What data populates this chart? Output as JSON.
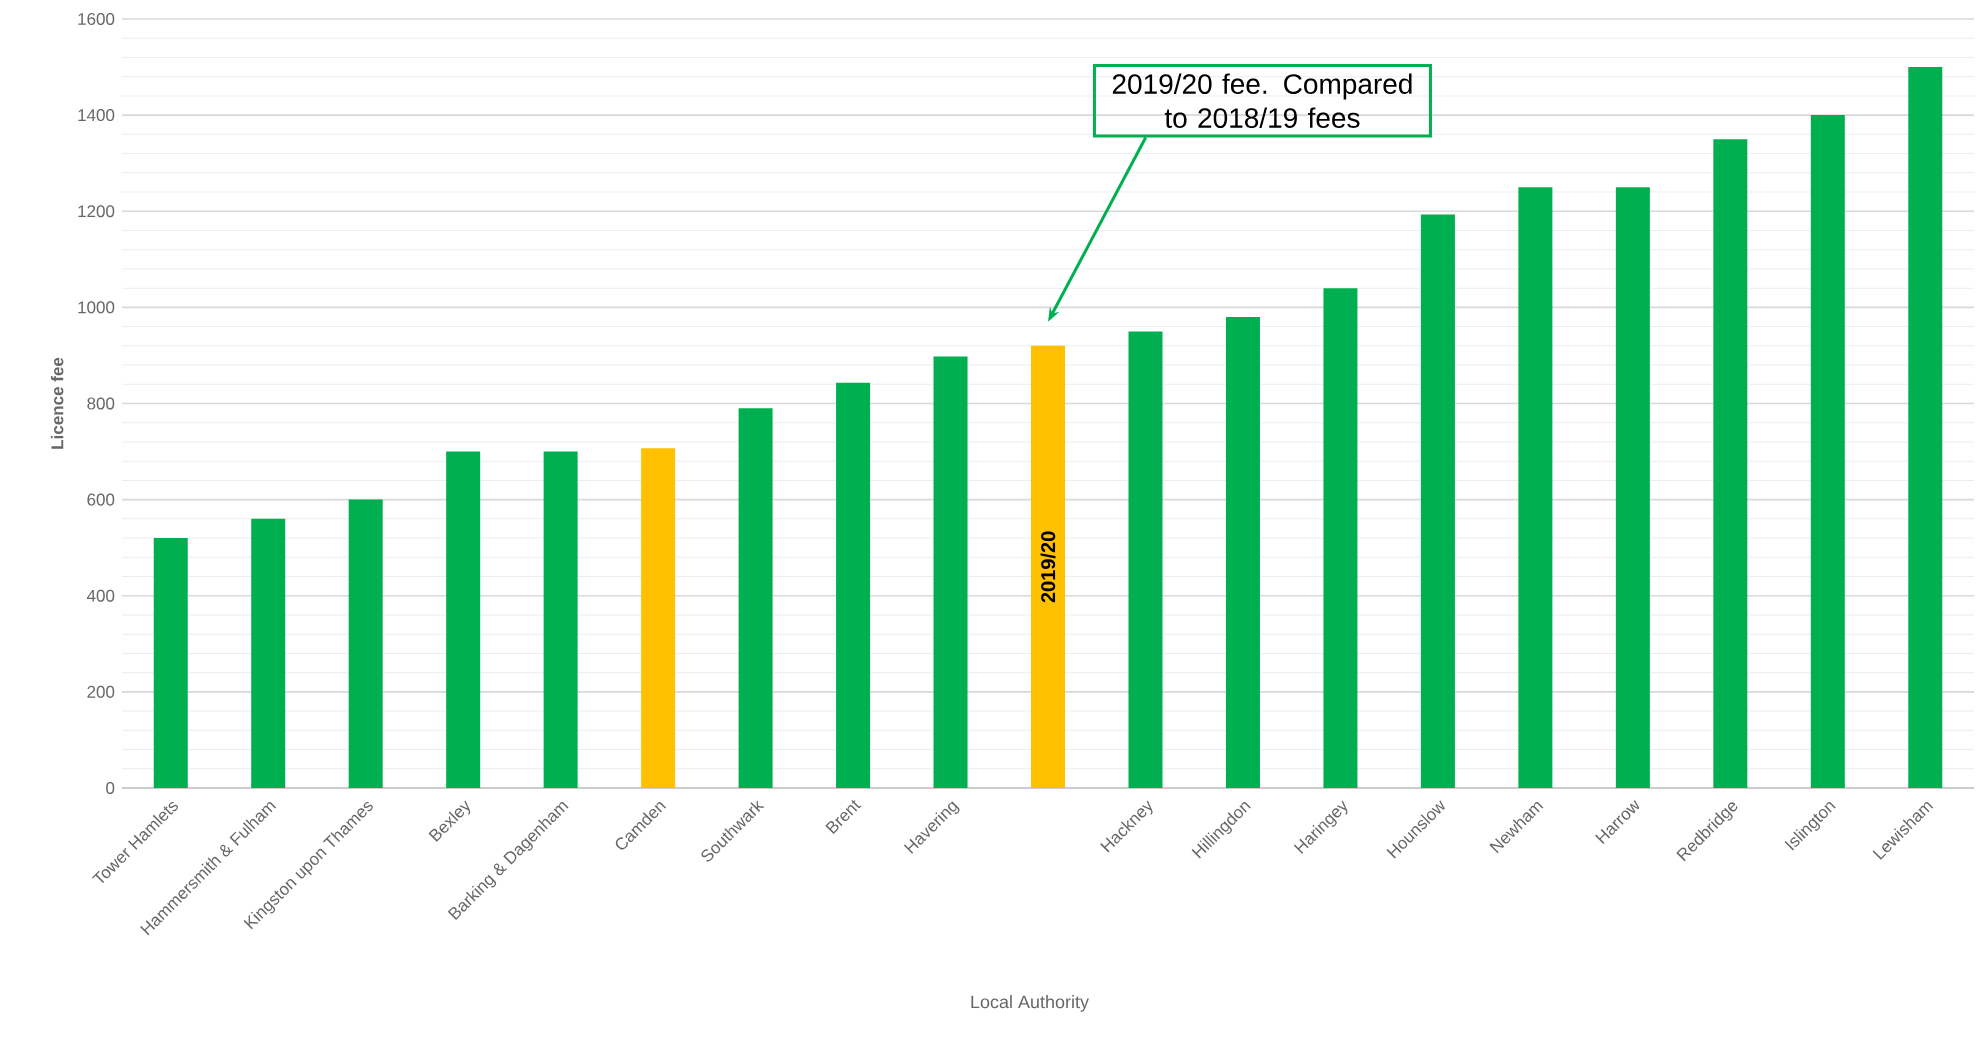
{
  "chart_data": {
    "type": "bar",
    "xlabel": "Local Authority",
    "ylabel": "Licence fee",
    "categories": [
      "Tower Hamlets",
      "Hammersmith & Fulham",
      "Kingston upon Thames",
      "Bexley",
      "Barking & Dagenham",
      "Camden",
      "Southwark",
      "Brent",
      "Havering",
      null,
      "Hackney",
      "Hillingdon",
      "Haringey",
      "Hounslow",
      "Newham",
      "Harrow",
      "Redbridge",
      "Islington",
      "Lewisham"
    ],
    "values": [
      520,
      560,
      600,
      700,
      700,
      707,
      790,
      843,
      898,
      920,
      950,
      980,
      1040,
      1193,
      1250,
      1250,
      1350,
      1400,
      1500
    ],
    "colors": [
      "#00b050",
      "#00b050",
      "#00b050",
      "#00b050",
      "#00b050",
      "#ffc000",
      "#00b050",
      "#00b050",
      "#00b050",
      "#ffc000",
      "#00b050",
      "#00b050",
      "#00b050",
      "#00b050",
      "#00b050",
      "#00b050",
      "#00b050",
      "#00b050",
      "#00b050"
    ],
    "value_labels": [
      null,
      null,
      null,
      null,
      null,
      null,
      null,
      null,
      null,
      "2019/20",
      null,
      null,
      null,
      null,
      null,
      null,
      null,
      null,
      null
    ],
    "annotations": [
      "2019/20 fee. Compared to 2018/19 fees"
    ],
    "ylim": [
      0,
      1600
    ],
    "yticks": [
      0,
      200,
      400,
      600,
      800,
      1000,
      1200,
      1400,
      1600
    ],
    "grid": true
  }
}
